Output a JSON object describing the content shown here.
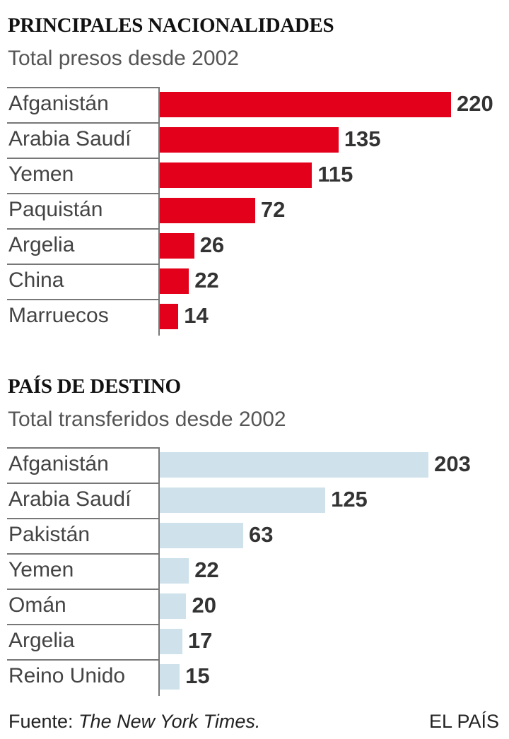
{
  "chart_data": [
    {
      "type": "bar",
      "orientation": "horizontal",
      "title": "PRINCIPALES NACIONALIDADES",
      "subtitle": "Total presos desde 2002",
      "categories": [
        "Afganistán",
        "Arabia Saudí",
        "Yemen",
        "Paquistán",
        "Argelia",
        "China",
        "Marruecos"
      ],
      "values": [
        220,
        135,
        115,
        72,
        26,
        22,
        14
      ],
      "color": "#e2001a",
      "xlim": [
        0,
        220
      ],
      "grid": false
    },
    {
      "type": "bar",
      "orientation": "horizontal",
      "title": "PAÍS DE DESTINO",
      "subtitle": "Total transferidos desde 2002",
      "categories": [
        "Afganistán",
        "Arabia Saudí",
        "Pakistán",
        "Yemen",
        "Omán",
        "Argelia",
        "Reino Unido"
      ],
      "values": [
        203,
        125,
        63,
        22,
        20,
        17,
        15
      ],
      "color": "#cfe2ec",
      "xlim": [
        0,
        220
      ],
      "grid": false
    }
  ],
  "footer": {
    "source_label": "Fuente: ",
    "source_name": "The New York Times.",
    "brand": "EL PAÍS"
  }
}
